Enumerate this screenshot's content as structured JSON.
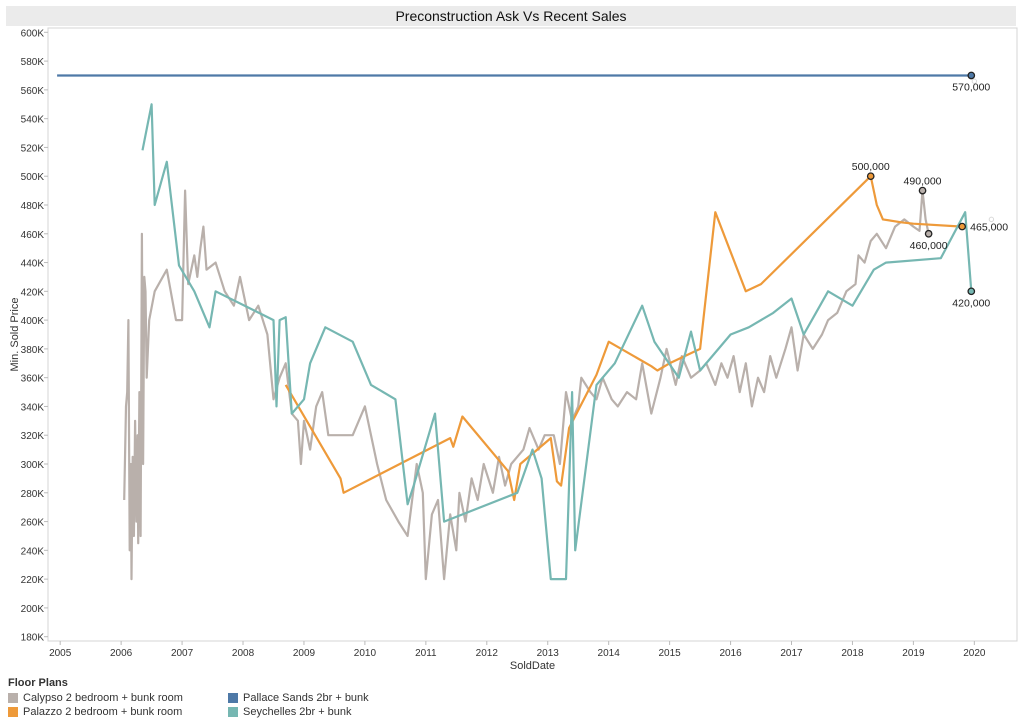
{
  "chart_data": {
    "type": "line",
    "title": "Preconstruction Ask Vs Recent Sales",
    "xlabel": "SoldDate",
    "ylabel": "Min. Sold Price",
    "xlim": [
      2004.8,
      2020.7
    ],
    "ylim": [
      177000,
      603000
    ],
    "x_ticks": [
      2005,
      2006,
      2007,
      2008,
      2009,
      2010,
      2011,
      2012,
      2013,
      2014,
      2015,
      2016,
      2017,
      2018,
      2019,
      2020
    ],
    "x_tick_labels": [
      "2005",
      "2006",
      "2007",
      "2008",
      "2009",
      "2010",
      "2011",
      "2012",
      "2013",
      "2014",
      "2015",
      "2016",
      "2017",
      "2018",
      "2019",
      "2020"
    ],
    "y_ticks": [
      180000,
      200000,
      220000,
      240000,
      260000,
      280000,
      300000,
      320000,
      340000,
      360000,
      380000,
      400000,
      420000,
      440000,
      460000,
      480000,
      500000,
      520000,
      540000,
      560000,
      580000,
      600000
    ],
    "y_tick_labels": [
      "180K",
      "200K",
      "220K",
      "240K",
      "260K",
      "280K",
      "300K",
      "320K",
      "340K",
      "360K",
      "380K",
      "400K",
      "420K",
      "440K",
      "460K",
      "480K",
      "500K",
      "520K",
      "540K",
      "560K",
      "580K",
      "600K"
    ],
    "grid": false,
    "legend_position": "bottom-left",
    "legend_title": "Floor Plans",
    "series": [
      {
        "name": "Calypso 2 bedroom + bunk room",
        "color": "#b9b0ab",
        "points": [
          [
            2006.05,
            275000
          ],
          [
            2006.08,
            340000
          ],
          [
            2006.1,
            350000
          ],
          [
            2006.12,
            400000
          ],
          [
            2006.14,
            240000
          ],
          [
            2006.16,
            300000
          ],
          [
            2006.17,
            220000
          ],
          [
            2006.19,
            305000
          ],
          [
            2006.21,
            250000
          ],
          [
            2006.23,
            330000
          ],
          [
            2006.25,
            260000
          ],
          [
            2006.27,
            320000
          ],
          [
            2006.28,
            245000
          ],
          [
            2006.3,
            350000
          ],
          [
            2006.32,
            250000
          ],
          [
            2006.34,
            460000
          ],
          [
            2006.36,
            300000
          ],
          [
            2006.38,
            430000
          ],
          [
            2006.4,
            420000
          ],
          [
            2006.42,
            360000
          ],
          [
            2006.46,
            400000
          ],
          [
            2006.55,
            420000
          ],
          [
            2006.75,
            435000
          ],
          [
            2006.9,
            400000
          ],
          [
            2007.0,
            400000
          ],
          [
            2007.05,
            490000
          ],
          [
            2007.1,
            425000
          ],
          [
            2007.2,
            445000
          ],
          [
            2007.25,
            430000
          ],
          [
            2007.3,
            450000
          ],
          [
            2007.35,
            465000
          ],
          [
            2007.4,
            435000
          ],
          [
            2007.55,
            440000
          ],
          [
            2007.7,
            420000
          ],
          [
            2007.85,
            410000
          ],
          [
            2007.95,
            430000
          ],
          [
            2008.1,
            400000
          ],
          [
            2008.25,
            410000
          ],
          [
            2008.4,
            390000
          ],
          [
            2008.5,
            345000
          ],
          [
            2008.6,
            360000
          ],
          [
            2008.7,
            370000
          ],
          [
            2008.8,
            335000
          ],
          [
            2008.9,
            330000
          ],
          [
            2008.95,
            300000
          ],
          [
            2009.0,
            330000
          ],
          [
            2009.1,
            310000
          ],
          [
            2009.2,
            340000
          ],
          [
            2009.3,
            350000
          ],
          [
            2009.4,
            320000
          ],
          [
            2009.6,
            320000
          ],
          [
            2009.8,
            320000
          ],
          [
            2010.0,
            340000
          ],
          [
            2010.2,
            300000
          ],
          [
            2010.35,
            275000
          ],
          [
            2010.55,
            260000
          ],
          [
            2010.7,
            250000
          ],
          [
            2010.85,
            300000
          ],
          [
            2010.95,
            280000
          ],
          [
            2011.0,
            220000
          ],
          [
            2011.1,
            265000
          ],
          [
            2011.2,
            275000
          ],
          [
            2011.3,
            220000
          ],
          [
            2011.4,
            265000
          ],
          [
            2011.5,
            240000
          ],
          [
            2011.55,
            280000
          ],
          [
            2011.65,
            260000
          ],
          [
            2011.75,
            290000
          ],
          [
            2011.85,
            275000
          ],
          [
            2011.95,
            300000
          ],
          [
            2012.1,
            280000
          ],
          [
            2012.2,
            305000
          ],
          [
            2012.3,
            285000
          ],
          [
            2012.4,
            300000
          ],
          [
            2012.6,
            310000
          ],
          [
            2012.7,
            325000
          ],
          [
            2012.85,
            310000
          ],
          [
            2012.95,
            320000
          ],
          [
            2013.1,
            320000
          ],
          [
            2013.2,
            300000
          ],
          [
            2013.3,
            350000
          ],
          [
            2013.4,
            330000
          ],
          [
            2013.5,
            340000
          ],
          [
            2013.55,
            360000
          ],
          [
            2013.7,
            350000
          ],
          [
            2013.8,
            345000
          ],
          [
            2013.9,
            360000
          ],
          [
            2014.05,
            345000
          ],
          [
            2014.15,
            340000
          ],
          [
            2014.3,
            350000
          ],
          [
            2014.45,
            345000
          ],
          [
            2014.55,
            370000
          ],
          [
            2014.7,
            335000
          ],
          [
            2014.85,
            360000
          ],
          [
            2014.95,
            380000
          ],
          [
            2015.1,
            355000
          ],
          [
            2015.2,
            375000
          ],
          [
            2015.35,
            360000
          ],
          [
            2015.5,
            365000
          ],
          [
            2015.6,
            370000
          ],
          [
            2015.75,
            355000
          ],
          [
            2015.85,
            370000
          ],
          [
            2015.95,
            360000
          ],
          [
            2016.05,
            375000
          ],
          [
            2016.15,
            350000
          ],
          [
            2016.25,
            370000
          ],
          [
            2016.35,
            340000
          ],
          [
            2016.45,
            360000
          ],
          [
            2016.55,
            350000
          ],
          [
            2016.65,
            375000
          ],
          [
            2016.75,
            360000
          ],
          [
            2016.9,
            380000
          ],
          [
            2017.0,
            395000
          ],
          [
            2017.1,
            365000
          ],
          [
            2017.2,
            390000
          ],
          [
            2017.35,
            380000
          ],
          [
            2017.5,
            390000
          ],
          [
            2017.6,
            400000
          ],
          [
            2017.75,
            405000
          ],
          [
            2017.9,
            420000
          ],
          [
            2018.05,
            425000
          ],
          [
            2018.1,
            445000
          ],
          [
            2018.2,
            440000
          ],
          [
            2018.3,
            455000
          ],
          [
            2018.4,
            460000
          ],
          [
            2018.55,
            450000
          ],
          [
            2018.7,
            465000
          ],
          [
            2018.85,
            470000
          ],
          [
            2019.0,
            465000
          ],
          [
            2019.1,
            462000
          ],
          [
            2019.15,
            490000
          ],
          [
            2019.2,
            470000
          ],
          [
            2019.25,
            460000
          ]
        ],
        "annotations": [
          {
            "x": 2019.15,
            "y": 490000,
            "label": "490,000"
          },
          {
            "x": 2019.25,
            "y": 460000,
            "label": "460,000"
          }
        ]
      },
      {
        "name": "Palazzo 2 bedroom + bunk room",
        "color": "#ee9a3a",
        "points": [
          [
            2008.7,
            355000
          ],
          [
            2009.6,
            290000
          ],
          [
            2009.65,
            280000
          ],
          [
            2011.4,
            318000
          ],
          [
            2011.45,
            312000
          ],
          [
            2011.6,
            333000
          ],
          [
            2012.35,
            295000
          ],
          [
            2012.45,
            275000
          ],
          [
            2012.55,
            300000
          ],
          [
            2013.05,
            318000
          ],
          [
            2013.15,
            288000
          ],
          [
            2013.22,
            285000
          ],
          [
            2013.35,
            325000
          ],
          [
            2013.8,
            362000
          ],
          [
            2014.0,
            385000
          ],
          [
            2014.7,
            368000
          ],
          [
            2014.8,
            365000
          ],
          [
            2015.0,
            370000
          ],
          [
            2015.5,
            380000
          ],
          [
            2015.75,
            475000
          ],
          [
            2016.25,
            420000
          ],
          [
            2016.5,
            425000
          ],
          [
            2018.3,
            500000
          ],
          [
            2018.4,
            480000
          ],
          [
            2018.5,
            470000
          ],
          [
            2018.8,
            468000
          ],
          [
            2019.0,
            467000
          ],
          [
            2019.8,
            465000
          ]
        ],
        "annotations": [
          {
            "x": 2018.3,
            "y": 500000,
            "label": "500,000"
          },
          {
            "x": 2019.8,
            "y": 465000,
            "label": "465,000"
          }
        ]
      },
      {
        "name": "Pallace Sands 2br + bunk",
        "color": "#4e79a7",
        "points": [
          [
            2004.95,
            570000
          ],
          [
            2019.95,
            570000
          ]
        ],
        "annotations": [
          {
            "x": 2019.95,
            "y": 570000,
            "label": "570,000"
          }
        ]
      },
      {
        "name": "Seychelles 2br + bunk",
        "color": "#76b7b2",
        "points": [
          [
            2006.35,
            518000
          ],
          [
            2006.5,
            550000
          ],
          [
            2006.55,
            480000
          ],
          [
            2006.75,
            510000
          ],
          [
            2006.95,
            438000
          ],
          [
            2007.2,
            420000
          ],
          [
            2007.45,
            395000
          ],
          [
            2007.55,
            420000
          ],
          [
            2008.5,
            400000
          ],
          [
            2008.55,
            340000
          ],
          [
            2008.6,
            400000
          ],
          [
            2008.7,
            402000
          ],
          [
            2008.8,
            335000
          ],
          [
            2009.0,
            345000
          ],
          [
            2009.1,
            370000
          ],
          [
            2009.35,
            395000
          ],
          [
            2009.8,
            385000
          ],
          [
            2010.1,
            355000
          ],
          [
            2010.5,
            345000
          ],
          [
            2010.7,
            272000
          ],
          [
            2010.8,
            285000
          ],
          [
            2011.15,
            335000
          ],
          [
            2011.3,
            260000
          ],
          [
            2012.5,
            280000
          ],
          [
            2012.75,
            310000
          ],
          [
            2012.9,
            290000
          ],
          [
            2013.05,
            220000
          ],
          [
            2013.3,
            220000
          ],
          [
            2013.4,
            350000
          ],
          [
            2013.45,
            240000
          ],
          [
            2013.8,
            355000
          ],
          [
            2014.1,
            370000
          ],
          [
            2014.55,
            410000
          ],
          [
            2014.75,
            385000
          ],
          [
            2015.15,
            360000
          ],
          [
            2015.35,
            392000
          ],
          [
            2015.5,
            365000
          ],
          [
            2016.0,
            390000
          ],
          [
            2016.3,
            395000
          ],
          [
            2016.7,
            405000
          ],
          [
            2017.0,
            415000
          ],
          [
            2017.2,
            390000
          ],
          [
            2017.4,
            405000
          ],
          [
            2017.6,
            420000
          ],
          [
            2018.0,
            410000
          ],
          [
            2018.35,
            435000
          ],
          [
            2018.55,
            440000
          ],
          [
            2019.45,
            443000
          ],
          [
            2019.85,
            475000
          ],
          [
            2019.95,
            420000
          ]
        ],
        "annotations": [
          {
            "x": 2019.95,
            "y": 420000,
            "label": "420,000"
          }
        ]
      }
    ],
    "faint_markers": [
      {
        "x": 2020.0,
        "y": 566000,
        "color": "#d9d9d9"
      },
      {
        "x": 2020.28,
        "y": 470000,
        "color": "#d9d9d9"
      }
    ]
  }
}
